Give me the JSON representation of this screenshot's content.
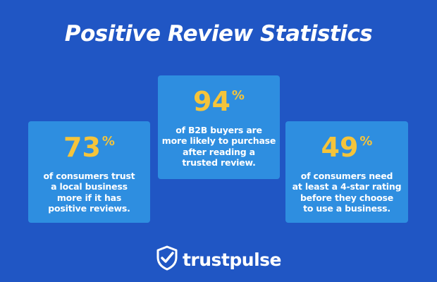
{
  "title": "Positive Review Statistics",
  "cards": [
    {
      "value": "73",
      "unit": "%",
      "lines": [
        "of consumers trust",
        "a local business",
        "more if it has",
        "positive reviews."
      ]
    },
    {
      "value": "94",
      "unit": "%",
      "lines": [
        "of B2B buyers are",
        "more likely to purchase",
        "after reading a",
        "trusted review."
      ]
    },
    {
      "value": "49",
      "unit": "%",
      "lines": [
        "of consumers need",
        "at least a 4-star rating",
        "before they choose",
        "to use a business."
      ]
    }
  ],
  "brand": {
    "name": "trustpulse",
    "icon": "shield-check-icon"
  },
  "colors": {
    "background": "#2056c4",
    "card": "#2e8ee0",
    "accent": "#f5c43a",
    "text": "#ffffff"
  }
}
